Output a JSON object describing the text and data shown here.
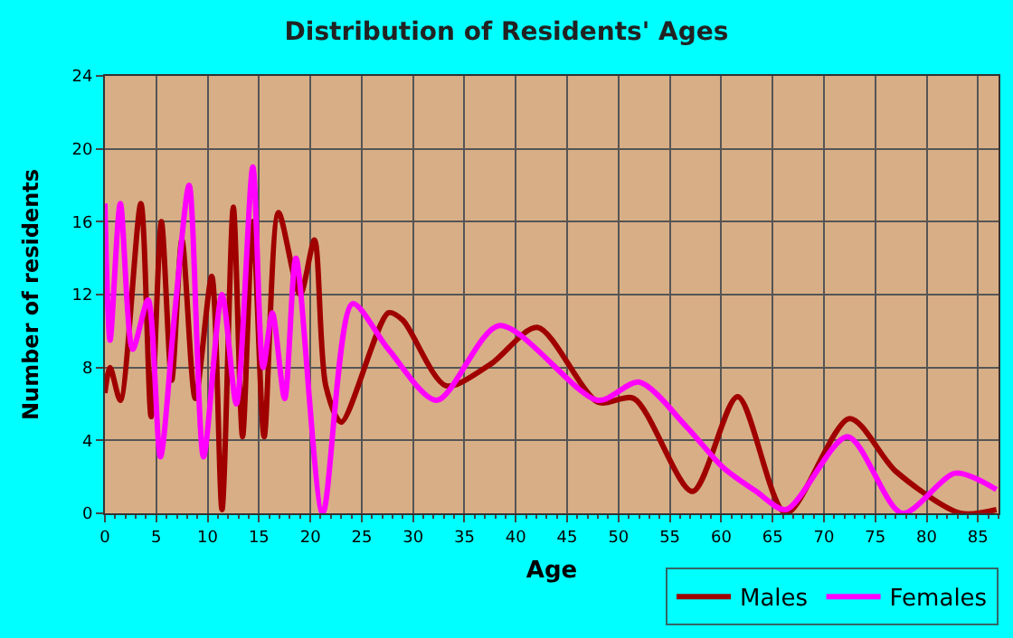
{
  "chart_data": {
    "type": "line",
    "title": "Distribution of Residents' Ages",
    "xlabel": "Age",
    "ylabel": "Number of residents",
    "series": [
      {
        "name": "Males",
        "color": "#a00000",
        "x": [
          0,
          0.5,
          1.5,
          3.5,
          4.5,
          5.5,
          6.5,
          7.5,
          8.8,
          10.4,
          11.4,
          12.5,
          13.4,
          14.4,
          15.5,
          16.9,
          19,
          20.4,
          21.5,
          23,
          27.6,
          29,
          33.2,
          37.6,
          42.1,
          48,
          51.5,
          57.2,
          61.6,
          66.3,
          72.5,
          77,
          83.3,
          86.8
        ],
        "values": [
          6.6,
          8,
          6.2,
          17,
          5.3,
          16,
          7.3,
          15,
          6.3,
          13,
          0.2,
          16.8,
          4.2,
          16,
          4.2,
          16.5,
          12,
          15,
          7,
          5,
          11,
          10.6,
          7,
          8.2,
          10.2,
          6.1,
          6.3,
          1.2,
          6.4,
          0,
          5.2,
          2.3,
          0,
          0.2
        ]
      },
      {
        "name": "Females",
        "color": "#ff00ff",
        "x": [
          0,
          0.5,
          1.5,
          2.7,
          4.2,
          5.4,
          6.8,
          8.2,
          9.6,
          11.4,
          12.8,
          14.4,
          15.4,
          16.3,
          17.5,
          18.6,
          21.2,
          24.1,
          27.6,
          32.3,
          38.4,
          48,
          52,
          56.7,
          60.2,
          63.4,
          66.3,
          72.3,
          77.6,
          82.8,
          86.8
        ],
        "values": [
          17,
          9.5,
          17,
          9,
          11.7,
          3.1,
          11,
          18,
          3.1,
          12,
          6,
          19,
          8,
          11,
          6.3,
          14,
          0,
          11.5,
          9,
          6.2,
          10.3,
          6.2,
          7.2,
          4.7,
          2.5,
          1.2,
          0.2,
          4.2,
          0,
          2.2,
          1.3
        ]
      }
    ],
    "xlim": [
      0,
      87
    ],
    "xticks": [
      0,
      5,
      10,
      15,
      20,
      25,
      30,
      35,
      40,
      45,
      50,
      55,
      60,
      65,
      70,
      75,
      80,
      85
    ],
    "ylim": [
      0,
      24
    ],
    "yticks": [
      0,
      4,
      8,
      12,
      16,
      20,
      24
    ],
    "grid": true,
    "legend": "bottom right",
    "marker": "none",
    "line_style": "solid"
  }
}
